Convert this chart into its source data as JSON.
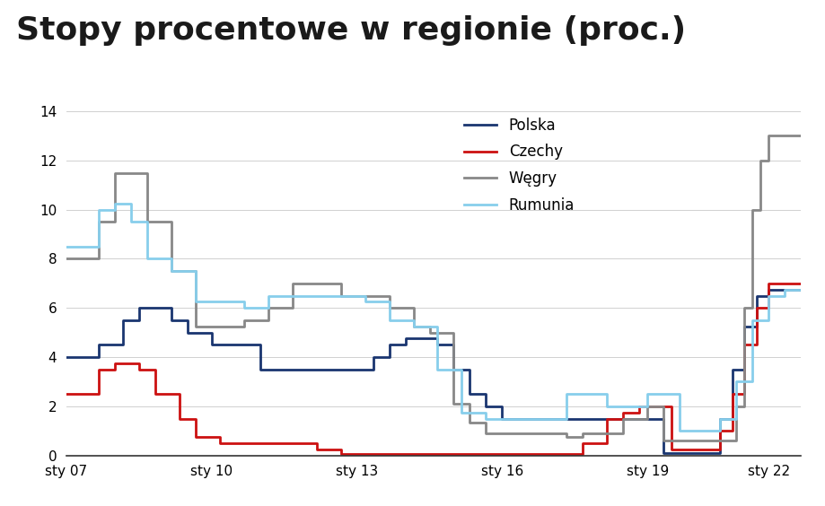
{
  "title": "Stopy procentowe w regionie (proc.)",
  "title_fontsize": 26,
  "title_fontweight": "bold",
  "legend_entries": [
    "Polska",
    "Czechy",
    "Węgry",
    "Rumunia"
  ],
  "colors": {
    "Polska": "#1a3570",
    "Czechy": "#cc1111",
    "Wegry": "#888888",
    "Rumunia": "#87CEEB"
  },
  "xlim": [
    0,
    182
  ],
  "ylim": [
    0,
    14
  ],
  "yticks": [
    0,
    2,
    4,
    6,
    8,
    10,
    12,
    14
  ],
  "xtick_labels": [
    "sty 07",
    "sty 10",
    "sty 13",
    "sty 16",
    "sty 19",
    "sty 22"
  ],
  "xtick_positions": [
    0,
    36,
    72,
    108,
    144,
    174
  ],
  "polska": {
    "x": [
      0,
      4,
      8,
      14,
      18,
      22,
      26,
      30,
      36,
      48,
      54,
      60,
      66,
      72,
      76,
      80,
      84,
      88,
      92,
      96,
      100,
      104,
      108,
      114,
      120,
      126,
      132,
      138,
      144,
      148,
      152,
      156,
      162,
      165,
      168,
      171,
      174,
      178,
      182
    ],
    "y": [
      4.0,
      4.0,
      4.5,
      5.5,
      6.0,
      6.0,
      5.5,
      5.0,
      4.5,
      3.5,
      3.5,
      3.5,
      3.5,
      3.5,
      4.0,
      4.5,
      4.75,
      4.75,
      4.5,
      3.5,
      2.5,
      2.0,
      1.5,
      1.5,
      1.5,
      1.5,
      1.5,
      1.5,
      1.5,
      0.1,
      0.1,
      0.1,
      1.5,
      3.5,
      5.25,
      6.5,
      6.75,
      6.75,
      6.75
    ]
  },
  "czechy": {
    "x": [
      0,
      4,
      8,
      12,
      18,
      22,
      28,
      32,
      38,
      44,
      50,
      56,
      62,
      68,
      74,
      80,
      86,
      92,
      98,
      104,
      110,
      116,
      122,
      128,
      134,
      138,
      142,
      148,
      150,
      154,
      158,
      162,
      165,
      168,
      171,
      174,
      178,
      182
    ],
    "y": [
      2.5,
      2.5,
      3.5,
      3.75,
      3.5,
      2.5,
      1.5,
      0.75,
      0.5,
      0.5,
      0.5,
      0.5,
      0.25,
      0.05,
      0.05,
      0.05,
      0.05,
      0.05,
      0.05,
      0.05,
      0.05,
      0.05,
      0.05,
      0.5,
      1.5,
      1.75,
      2.0,
      2.0,
      0.25,
      0.25,
      0.25,
      1.0,
      2.5,
      4.5,
      6.0,
      7.0,
      7.0,
      7.0
    ]
  },
  "wegry": {
    "x": [
      0,
      4,
      8,
      12,
      16,
      20,
      26,
      32,
      38,
      44,
      50,
      56,
      62,
      68,
      74,
      80,
      86,
      90,
      96,
      100,
      104,
      108,
      114,
      120,
      124,
      128,
      132,
      138,
      144,
      148,
      152,
      156,
      160,
      164,
      166,
      168,
      170,
      172,
      174,
      178,
      182
    ],
    "y": [
      8.0,
      8.0,
      9.5,
      11.5,
      11.5,
      9.5,
      7.5,
      5.25,
      5.25,
      5.5,
      6.0,
      7.0,
      7.0,
      6.5,
      6.5,
      6.0,
      5.25,
      5.0,
      2.1,
      1.35,
      0.9,
      0.9,
      0.9,
      0.9,
      0.75,
      0.9,
      0.9,
      1.5,
      2.0,
      0.6,
      0.6,
      0.6,
      0.6,
      0.6,
      2.0,
      6.0,
      10.0,
      12.0,
      13.0,
      13.0,
      13.0
    ]
  },
  "rumunia": {
    "x": [
      0,
      4,
      8,
      12,
      16,
      20,
      26,
      32,
      38,
      44,
      50,
      56,
      62,
      68,
      74,
      80,
      86,
      92,
      98,
      104,
      108,
      112,
      116,
      120,
      124,
      128,
      134,
      138,
      144,
      148,
      152,
      156,
      162,
      166,
      170,
      174,
      178,
      182
    ],
    "y": [
      8.5,
      8.5,
      10.0,
      10.25,
      9.5,
      8.0,
      7.5,
      6.25,
      6.25,
      6.0,
      6.5,
      6.5,
      6.5,
      6.5,
      6.25,
      5.5,
      5.25,
      3.5,
      1.75,
      1.5,
      1.5,
      1.5,
      1.5,
      1.5,
      2.5,
      2.5,
      2.0,
      2.0,
      2.5,
      2.5,
      1.0,
      1.0,
      1.5,
      3.0,
      5.5,
      6.5,
      6.75,
      6.75
    ]
  }
}
